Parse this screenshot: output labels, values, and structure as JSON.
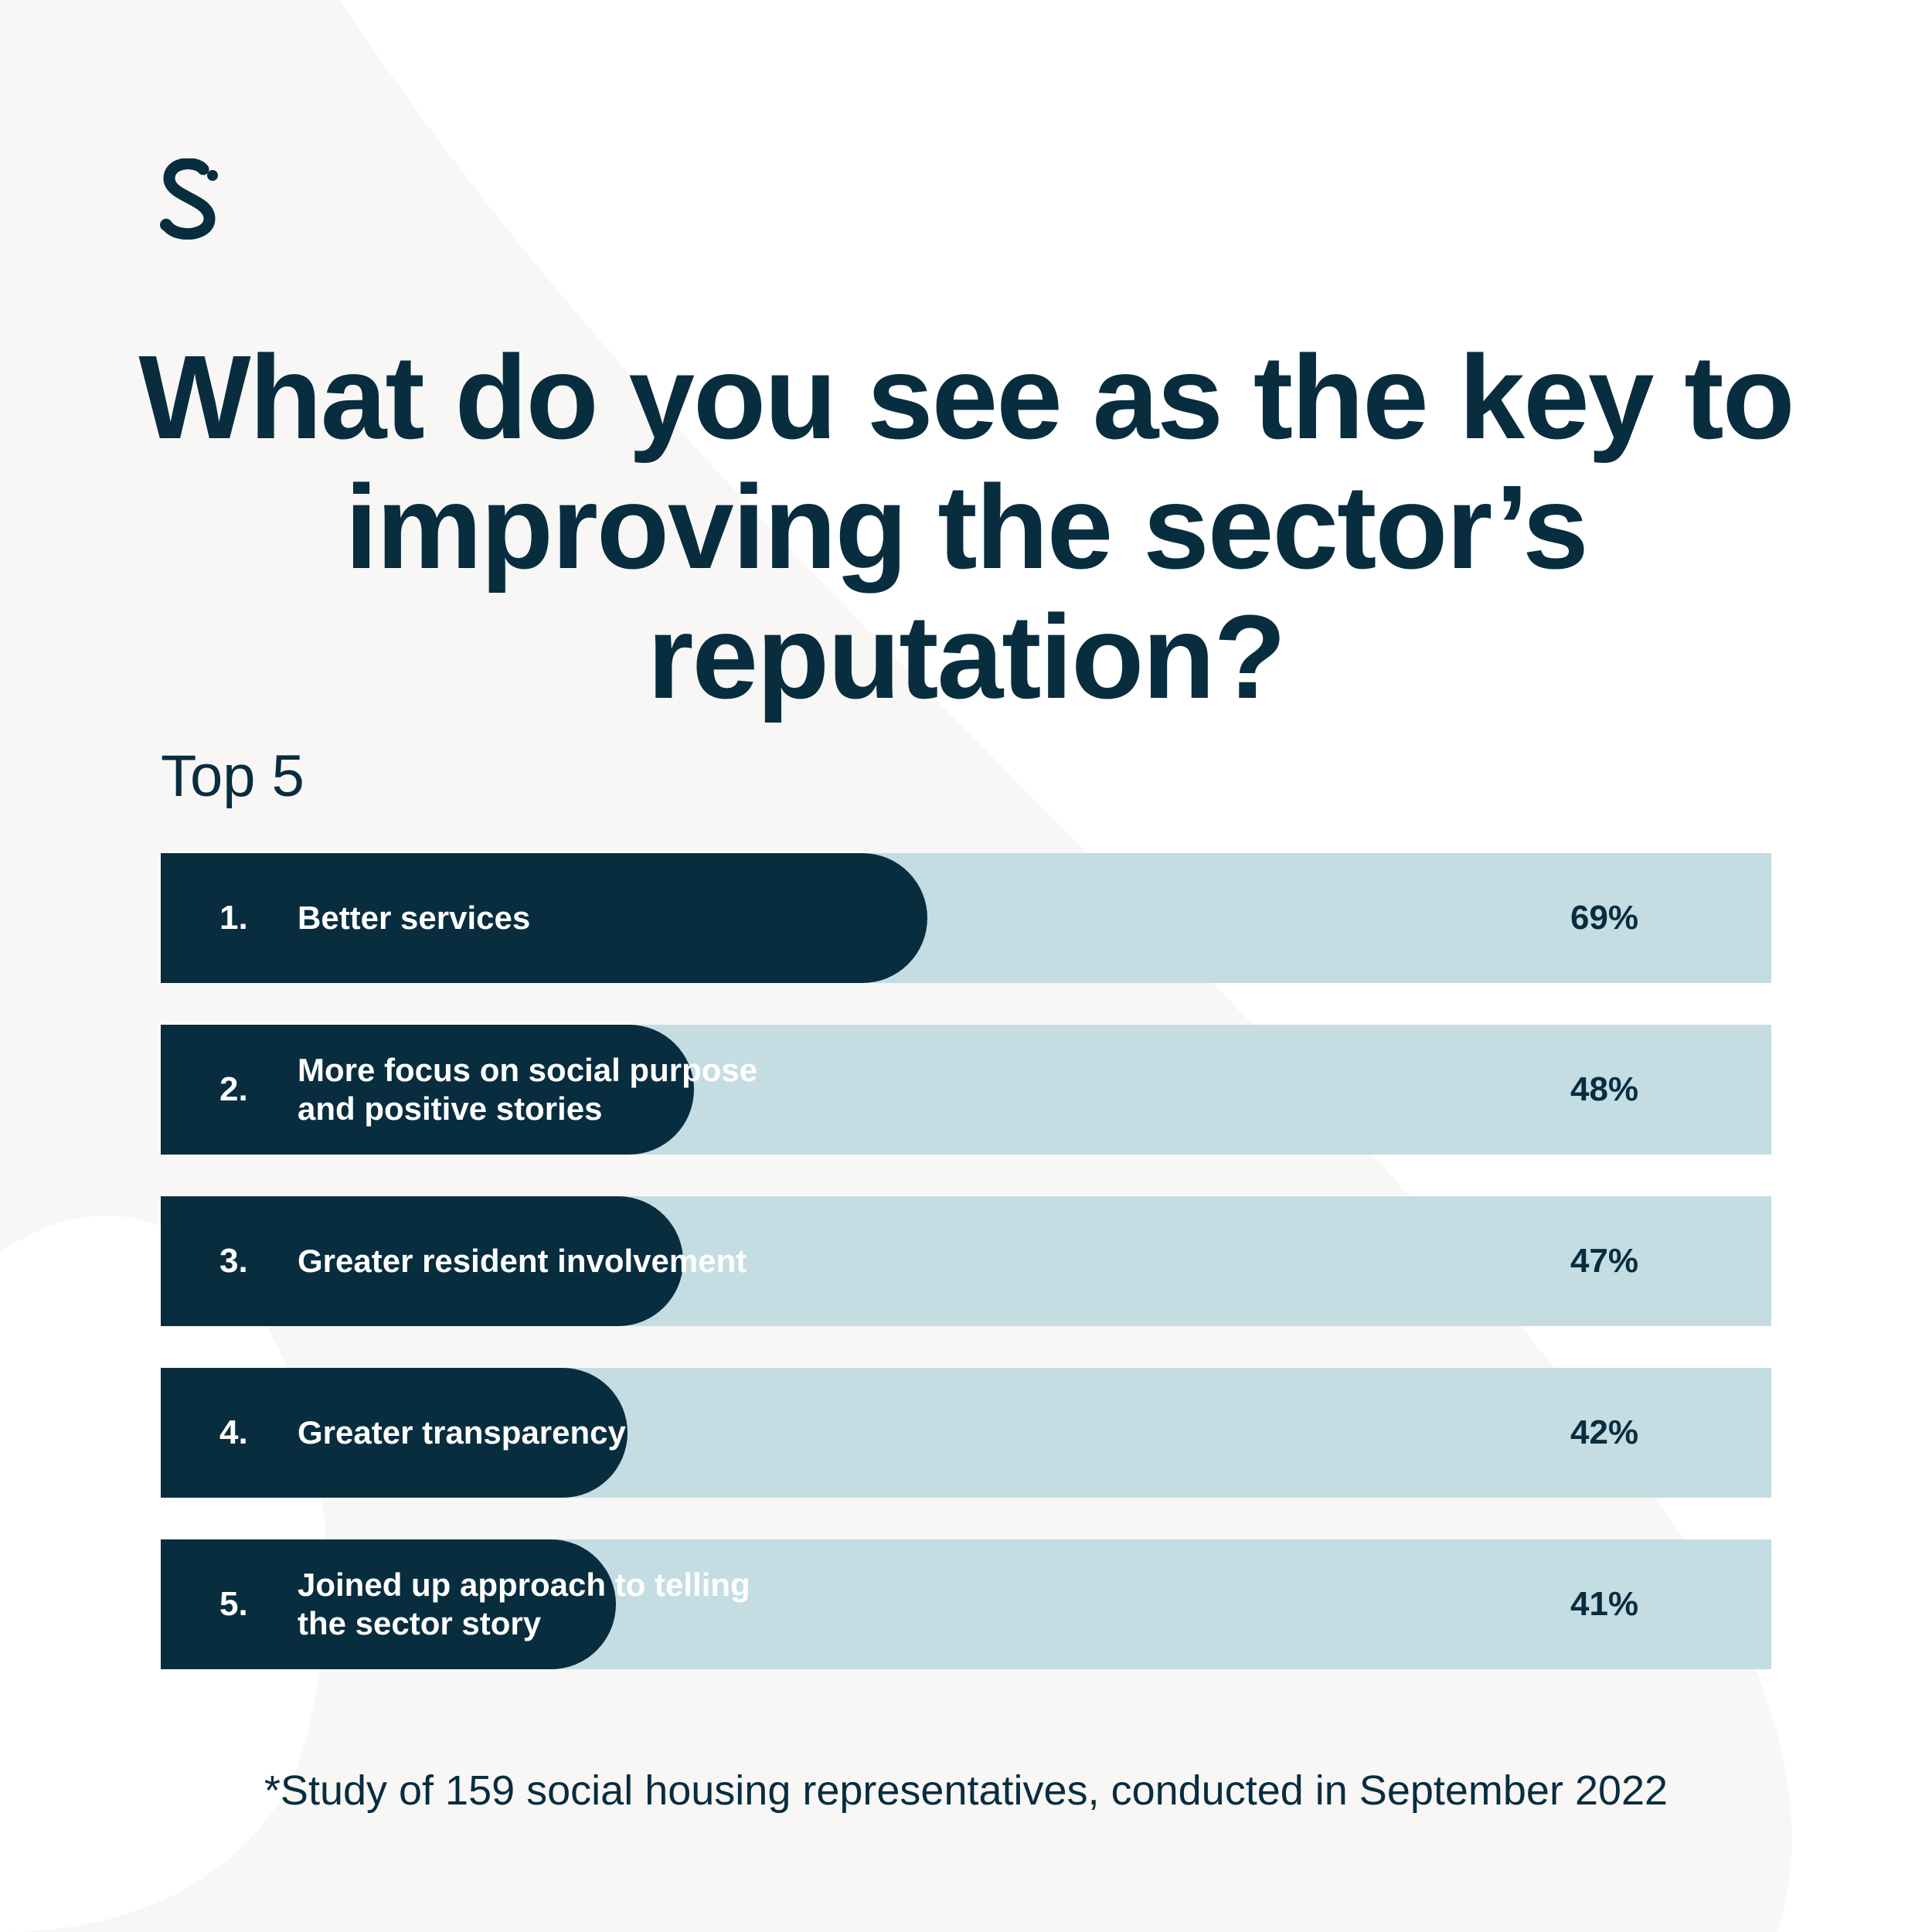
{
  "colors": {
    "background": "#ffffff",
    "swoosh": "#f8f7f5",
    "bar_fill": "#082d3f",
    "track": "#c4dde2",
    "label_text": "#ffffff",
    "value_text": "#082d3f"
  },
  "logo": {
    "icon": "stylized-s-logo"
  },
  "chart_data": {
    "type": "bar",
    "orientation": "horizontal",
    "title": "What do you see as the key to improving the sector’s reputation?",
    "subtitle": "Top 5",
    "xlim": [
      0,
      100
    ],
    "bars": [
      {
        "rank": "1.",
        "label": "Better services",
        "value": 69,
        "value_label": "69%"
      },
      {
        "rank": "2.",
        "label": "More focus on social purpose and positive stories",
        "value": 48,
        "value_label": "48%"
      },
      {
        "rank": "3.",
        "label": "Greater resident involvement",
        "value": 47,
        "value_label": "47%"
      },
      {
        "rank": "4.",
        "label": "Greater transparency",
        "value": 42,
        "value_label": "42%"
      },
      {
        "rank": "5.",
        "label": "Joined up approach to telling the sector story",
        "value": 41,
        "value_label": "41%"
      }
    ],
    "footnote": "*Study of 159 social housing representatives, conducted in September 2022"
  }
}
